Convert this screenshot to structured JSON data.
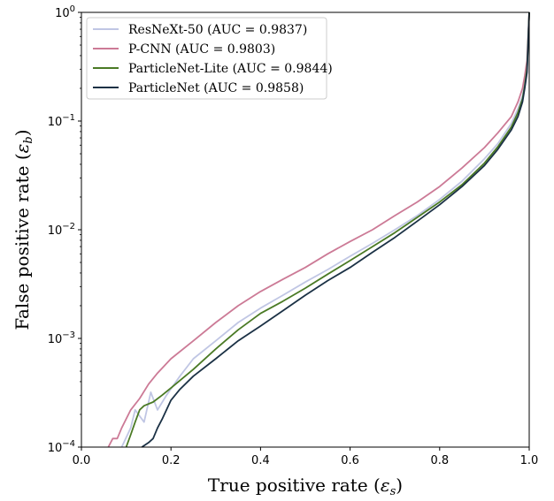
{
  "chart_data": {
    "type": "line",
    "xlabel": "True positive rate (",
    "xlabel_symbol": "ε",
    "xlabel_sub": "s",
    "xlabel_close": ")",
    "ylabel": "False positive rate (",
    "ylabel_symbol": "ε",
    "ylabel_sub": "b",
    "ylabel_close": ")",
    "xlim": [
      0.0,
      1.0
    ],
    "ylim": [
      0.0001,
      1
    ],
    "yscale": "log",
    "grid": false,
    "legend_location": "upper-left",
    "x_ticks": [
      {
        "value": 0.0,
        "label": "0.0"
      },
      {
        "value": 0.2,
        "label": "0.2"
      },
      {
        "value": 0.4,
        "label": "0.4"
      },
      {
        "value": 0.6,
        "label": "0.6"
      },
      {
        "value": 0.8,
        "label": "0.8"
      },
      {
        "value": 1.0,
        "label": "1.0"
      }
    ],
    "y_ticks": [
      {
        "value": 0.0001,
        "base": "10",
        "exp": "−4"
      },
      {
        "value": 0.001,
        "base": "10",
        "exp": "−3"
      },
      {
        "value": 0.01,
        "base": "10",
        "exp": "−2"
      },
      {
        "value": 0.1,
        "base": "10",
        "exp": "−1"
      },
      {
        "value": 1,
        "base": "10",
        "exp": "0"
      }
    ],
    "series": [
      {
        "name": "ResNeXt-50 (AUC = 0.9837)",
        "color": "#c0c6e4",
        "x": [
          0.09,
          0.11,
          0.12,
          0.14,
          0.155,
          0.17,
          0.19,
          0.22,
          0.25,
          0.3,
          0.35,
          0.4,
          0.45,
          0.5,
          0.55,
          0.6,
          0.65,
          0.7,
          0.75,
          0.8,
          0.85,
          0.9,
          0.93,
          0.96,
          0.975,
          0.985,
          0.99,
          0.995,
          1.0
        ],
        "y": [
          0.0001,
          0.00015,
          0.00022,
          0.00017,
          0.00032,
          0.00022,
          0.0003,
          0.00045,
          0.00065,
          0.00095,
          0.0014,
          0.0019,
          0.0025,
          0.0033,
          0.0043,
          0.0057,
          0.0075,
          0.01,
          0.0135,
          0.019,
          0.028,
          0.045,
          0.062,
          0.095,
          0.13,
          0.17,
          0.22,
          0.32,
          1.0
        ]
      },
      {
        "name": "P-CNN (AUC = 0.9803)",
        "color": "#cc7a96",
        "x": [
          0.06,
          0.07,
          0.08,
          0.09,
          0.11,
          0.13,
          0.15,
          0.17,
          0.2,
          0.25,
          0.3,
          0.35,
          0.4,
          0.45,
          0.5,
          0.55,
          0.6,
          0.65,
          0.7,
          0.75,
          0.8,
          0.85,
          0.9,
          0.93,
          0.96,
          0.975,
          0.985,
          0.99,
          0.995,
          1.0
        ],
        "y": [
          0.0001,
          0.00012,
          0.00012,
          0.00015,
          0.00022,
          0.00028,
          0.00038,
          0.00048,
          0.00065,
          0.00095,
          0.0014,
          0.002,
          0.0027,
          0.0035,
          0.0045,
          0.006,
          0.0078,
          0.01,
          0.0135,
          0.018,
          0.025,
          0.037,
          0.057,
          0.078,
          0.11,
          0.15,
          0.2,
          0.26,
          0.36,
          1.0
        ]
      },
      {
        "name": "ParticleNet-Lite (AUC = 0.9844)",
        "color": "#4a7a25",
        "x": [
          0.1,
          0.11,
          0.12,
          0.13,
          0.14,
          0.16,
          0.18,
          0.2,
          0.25,
          0.3,
          0.35,
          0.4,
          0.45,
          0.5,
          0.55,
          0.6,
          0.65,
          0.7,
          0.75,
          0.8,
          0.85,
          0.9,
          0.93,
          0.96,
          0.975,
          0.985,
          0.99,
          0.995,
          1.0
        ],
        "y": [
          0.0001,
          0.00013,
          0.00017,
          0.00022,
          0.00024,
          0.00026,
          0.0003,
          0.00035,
          0.00052,
          0.0008,
          0.0012,
          0.0017,
          0.0022,
          0.0029,
          0.0039,
          0.0052,
          0.007,
          0.0094,
          0.013,
          0.018,
          0.026,
          0.041,
          0.058,
          0.088,
          0.12,
          0.16,
          0.21,
          0.3,
          1.0
        ]
      },
      {
        "name": "ParticleNet (AUC = 0.9858)",
        "color": "#1b3145",
        "x": [
          0.135,
          0.15,
          0.16,
          0.17,
          0.18,
          0.19,
          0.2,
          0.22,
          0.25,
          0.3,
          0.35,
          0.4,
          0.45,
          0.5,
          0.55,
          0.6,
          0.65,
          0.7,
          0.75,
          0.8,
          0.85,
          0.9,
          0.93,
          0.96,
          0.975,
          0.985,
          0.99,
          0.995,
          1.0
        ],
        "y": [
          0.0001,
          0.00011,
          0.00012,
          0.00015,
          0.00018,
          0.00022,
          0.00027,
          0.00034,
          0.00045,
          0.00065,
          0.00095,
          0.0013,
          0.0018,
          0.0025,
          0.0034,
          0.0045,
          0.0062,
          0.0085,
          0.012,
          0.017,
          0.025,
          0.039,
          0.055,
          0.083,
          0.11,
          0.15,
          0.2,
          0.28,
          1.0
        ]
      }
    ]
  }
}
